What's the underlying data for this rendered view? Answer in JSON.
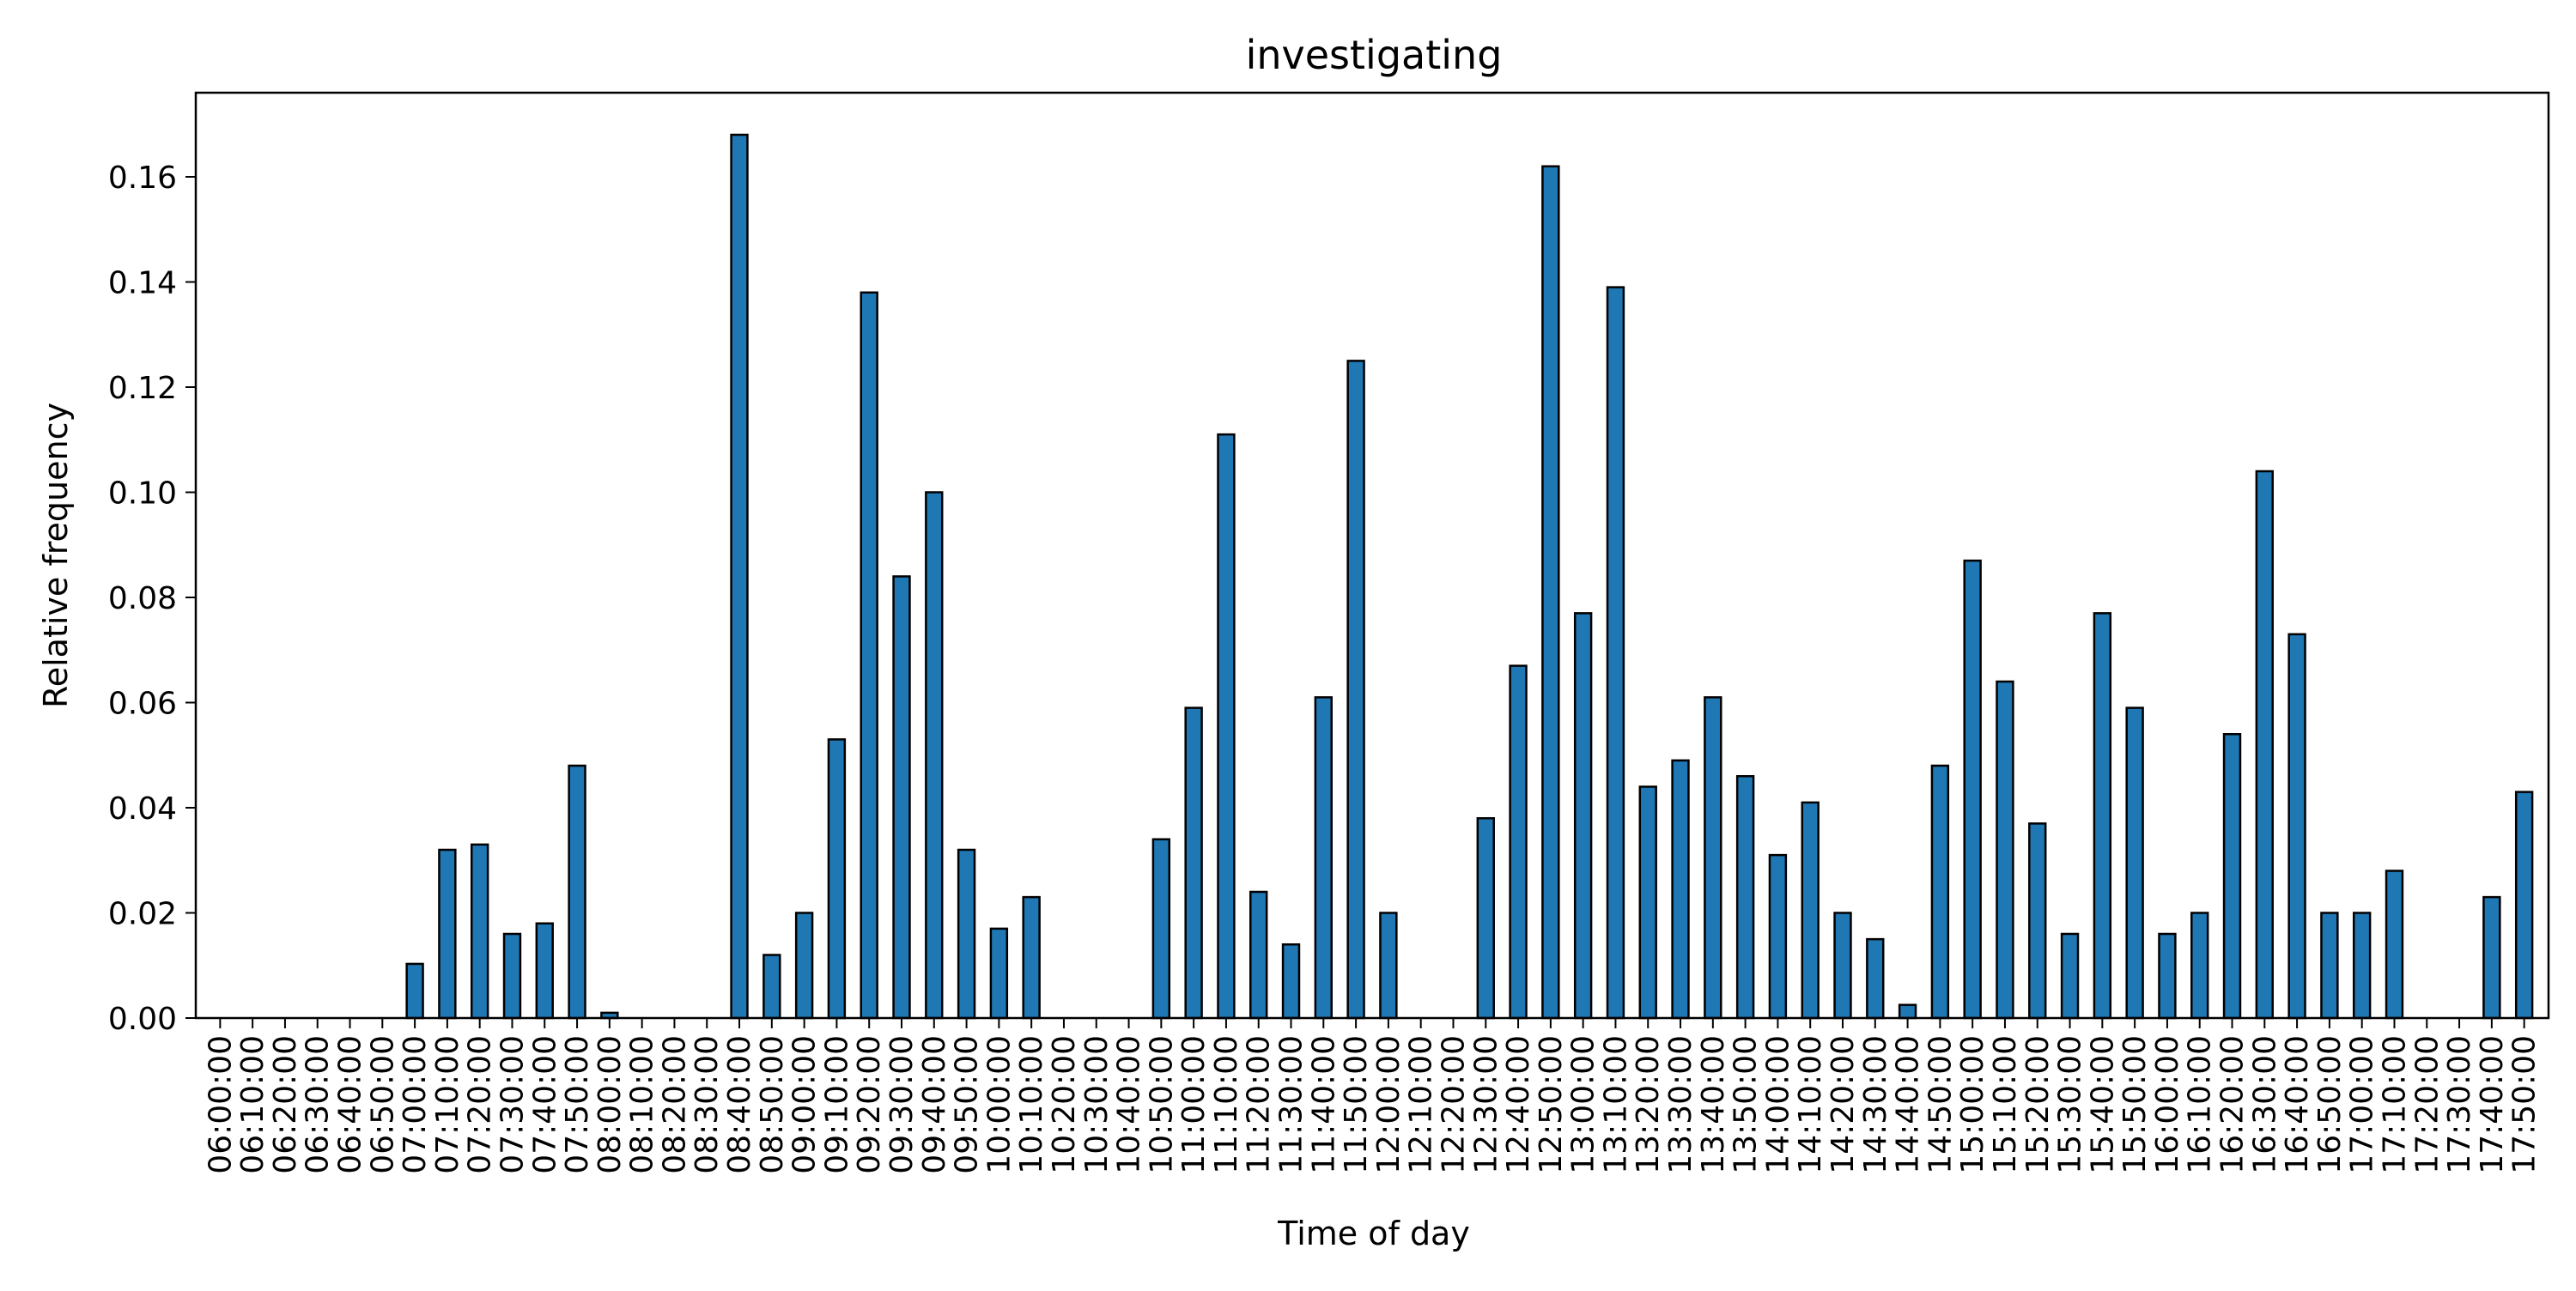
{
  "chart_data": {
    "type": "bar",
    "title": "investigating",
    "xlabel": "Time of day",
    "ylabel": "Relative frequency",
    "ylim": [
      0,
      0.176
    ],
    "yticks": [
      "0.00",
      "0.02",
      "0.04",
      "0.06",
      "0.08",
      "0.10",
      "0.12",
      "0.14",
      "0.16"
    ],
    "grid": false,
    "legend": "none",
    "bar_color": "#1f77b4",
    "edge_color": "#000000",
    "categories": [
      "06:00:00",
      "06:10:00",
      "06:20:00",
      "06:30:00",
      "06:40:00",
      "06:50:00",
      "07:00:00",
      "07:10:00",
      "07:20:00",
      "07:30:00",
      "07:40:00",
      "07:50:00",
      "08:00:00",
      "08:10:00",
      "08:20:00",
      "08:30:00",
      "08:40:00",
      "08:50:00",
      "09:00:00",
      "09:10:00",
      "09:20:00",
      "09:30:00",
      "09:40:00",
      "09:50:00",
      "10:00:00",
      "10:10:00",
      "10:20:00",
      "10:30:00",
      "10:40:00",
      "10:50:00",
      "11:00:00",
      "11:10:00",
      "11:20:00",
      "11:30:00",
      "11:40:00",
      "11:50:00",
      "12:00:00",
      "12:10:00",
      "12:20:00",
      "12:30:00",
      "12:40:00",
      "12:50:00",
      "13:00:00",
      "13:10:00",
      "13:20:00",
      "13:30:00",
      "13:40:00",
      "13:50:00",
      "14:00:00",
      "14:10:00",
      "14:20:00",
      "14:30:00",
      "14:40:00",
      "14:50:00",
      "15:00:00",
      "15:10:00",
      "15:20:00",
      "15:30:00",
      "15:40:00",
      "15:50:00",
      "16:00:00",
      "16:10:00",
      "16:20:00",
      "16:30:00",
      "16:40:00",
      "16:50:00",
      "17:00:00",
      "17:10:00",
      "17:20:00",
      "17:30:00",
      "17:40:00",
      "17:50:00"
    ],
    "values": [
      0,
      0,
      0,
      0,
      0,
      0,
      0.0103,
      0.032,
      0.033,
      0.016,
      0.018,
      0.048,
      0.001,
      0,
      0,
      0,
      0.168,
      0.012,
      0.02,
      0.053,
      0.138,
      0.084,
      0.1,
      0.032,
      0.017,
      0.023,
      0,
      0,
      0,
      0.034,
      0.059,
      0.111,
      0.024,
      0.014,
      0.061,
      0.125,
      0.02,
      0,
      0,
      0.038,
      0.067,
      0.162,
      0.077,
      0.139,
      0.044,
      0.049,
      0.061,
      0.046,
      0.031,
      0.041,
      0.02,
      0.015,
      0.0025,
      0.048,
      0.087,
      0.064,
      0.037,
      0.016,
      0.077,
      0.059,
      0.016,
      0.02,
      0.054,
      0.104,
      0.073,
      0.02,
      0.02,
      0.028,
      0,
      0,
      0.023,
      0.043
    ]
  }
}
